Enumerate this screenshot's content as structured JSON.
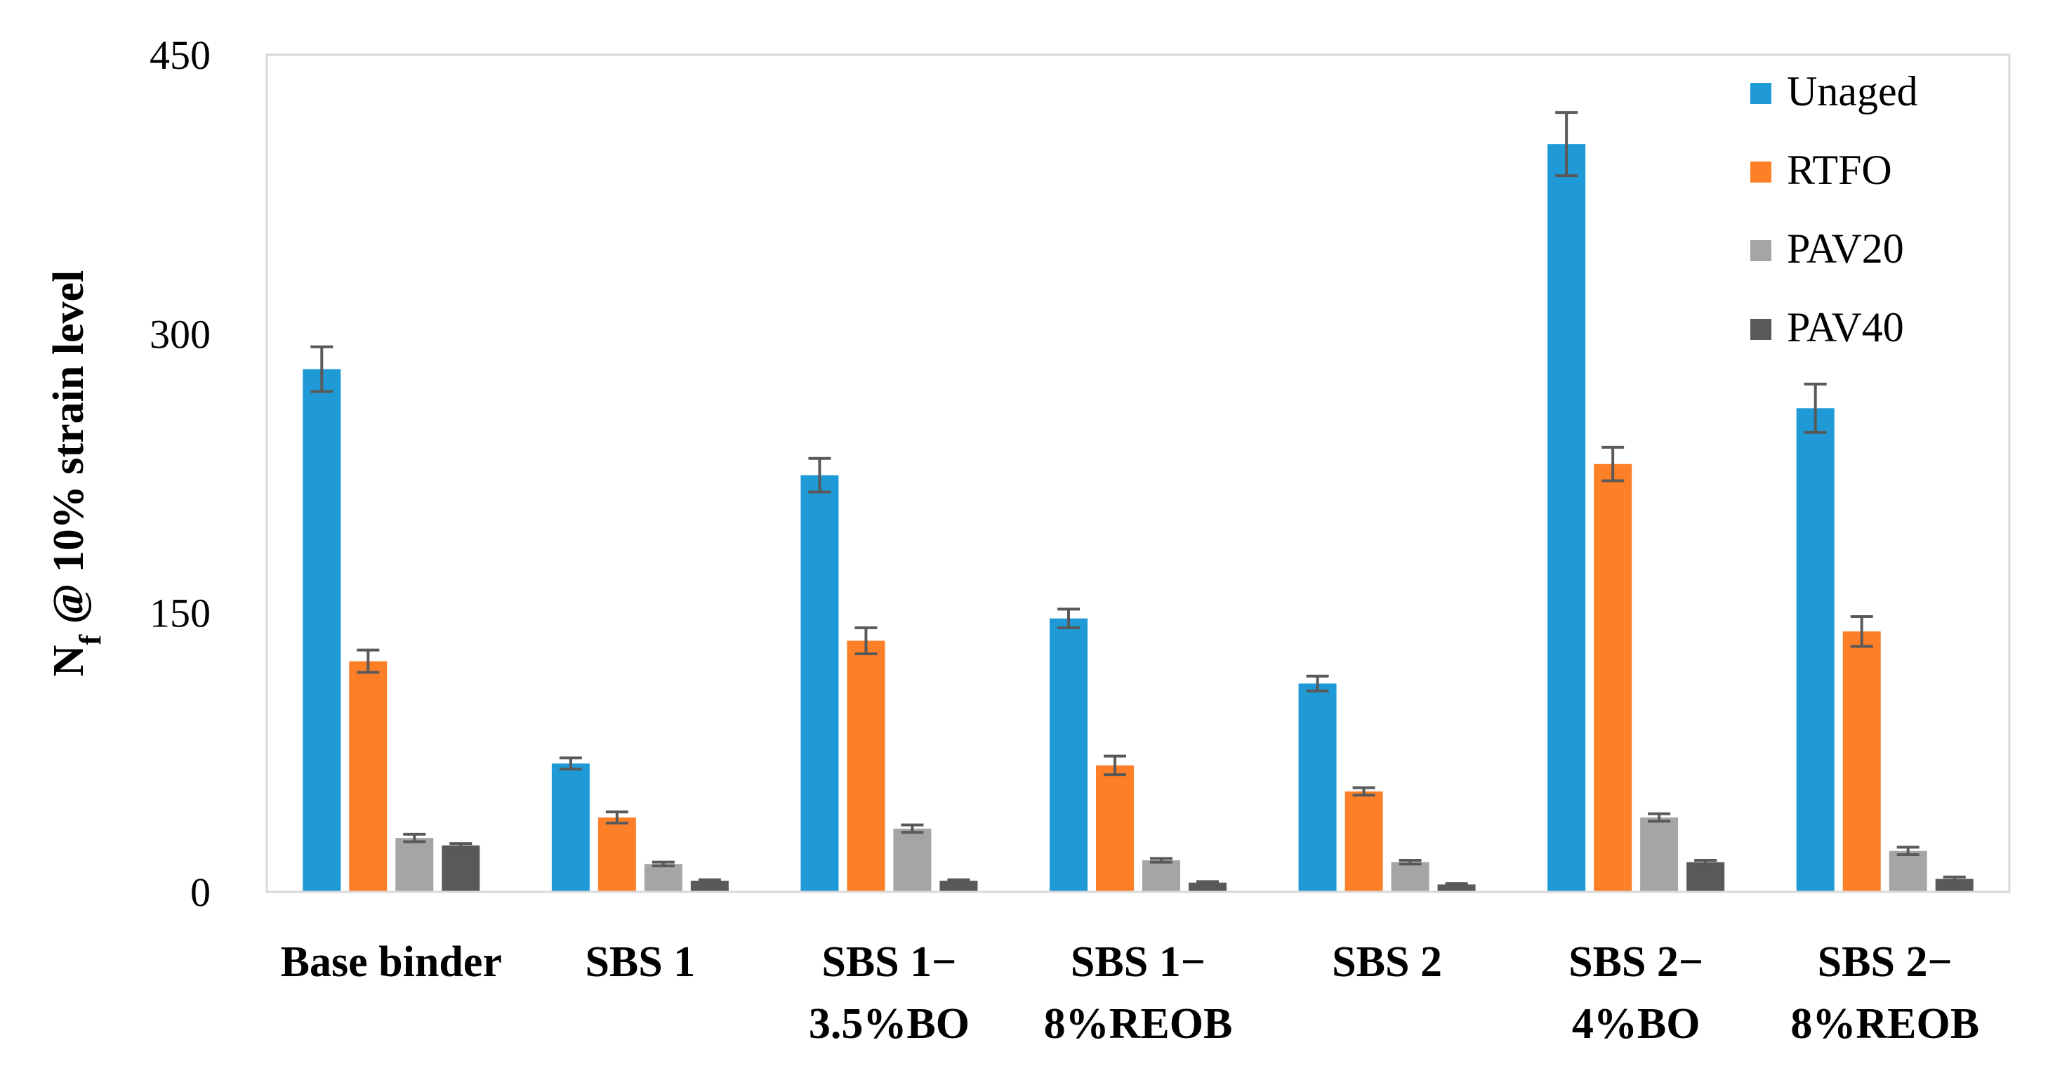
{
  "chart_data": {
    "type": "bar",
    "title": "",
    "xlabel": "",
    "ylabel": {
      "main": "N",
      "sub": "f",
      "rest": " @ 10% strain level"
    },
    "ylim": [
      0,
      450
    ],
    "yticks": [
      0,
      150,
      300,
      450
    ],
    "grid": false,
    "legend_position": "top-right",
    "categories": [
      [
        "Base binder"
      ],
      [
        "SBS 1"
      ],
      [
        "SBS 1−",
        "3.5%BO"
      ],
      [
        "SBS 1−",
        "8%REOB"
      ],
      [
        "SBS 2"
      ],
      [
        "SBS 2−",
        "4%BO"
      ],
      [
        "SBS 2−",
        "8%REOB"
      ]
    ],
    "series": [
      {
        "name": "Unaged",
        "color": "#1f9ad6",
        "values": [
          281,
          69,
          224,
          147,
          112,
          402,
          260
        ],
        "errors": [
          12,
          3,
          9,
          5,
          4,
          17,
          13
        ]
      },
      {
        "name": "RTFO",
        "color": "#fd7f28",
        "values": [
          124,
          40,
          135,
          68,
          54,
          230,
          140
        ],
        "errors": [
          6,
          3,
          7,
          5,
          2,
          9,
          8
        ]
      },
      {
        "name": "PAV20",
        "color": "#a5a5a5",
        "values": [
          29,
          15,
          34,
          17,
          16,
          40,
          22
        ],
        "errors": [
          2,
          1,
          2,
          1,
          1,
          2,
          2
        ]
      },
      {
        "name": "PAV40",
        "color": "#595959",
        "values": [
          25,
          6,
          6,
          5,
          4,
          16,
          7
        ],
        "errors": [
          1,
          0.5,
          0.5,
          0.5,
          0.5,
          1,
          1
        ]
      }
    ],
    "error_bar_color": "#595959"
  }
}
